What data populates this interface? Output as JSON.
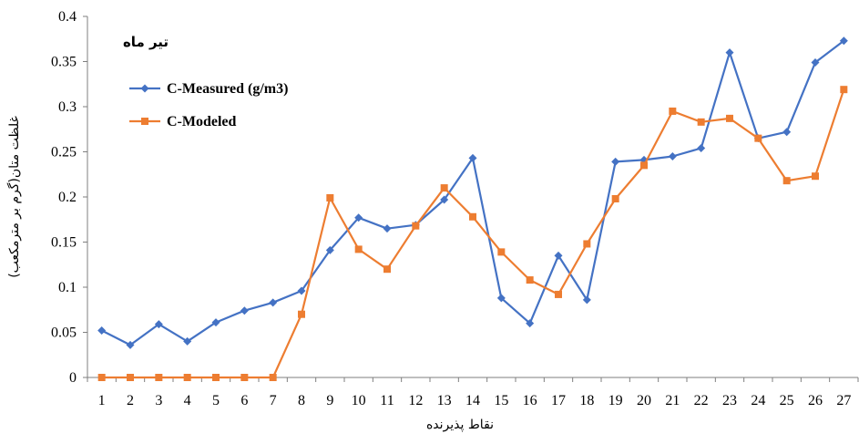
{
  "chart_data": {
    "type": "line",
    "annotation": "تیر ماه",
    "xlabel": "نقاط پذیرنده",
    "ylabel": "غلظت متان(گرم بر مترمکعب)",
    "categories": [
      "1",
      "2",
      "3",
      "4",
      "5",
      "6",
      "7",
      "8",
      "9",
      "10",
      "11",
      "12",
      "13",
      "14",
      "15",
      "16",
      "17",
      "18",
      "19",
      "20",
      "21",
      "22",
      "23",
      "24",
      "25",
      "26",
      "27"
    ],
    "ylim": [
      0,
      0.4
    ],
    "yticks": [
      0,
      0.05,
      0.1,
      0.15,
      0.2,
      0.25,
      0.3,
      0.35,
      0.4
    ],
    "ytick_labels": [
      "0",
      "0.05",
      "0.1",
      "0.15",
      "0.2",
      "0.25",
      "0.3",
      "0.35",
      "0.4"
    ],
    "grid": false,
    "legend_position": "top-left",
    "series": [
      {
        "name": "C-Measured (g/m3)",
        "color": "#4472C4",
        "marker": "diamond",
        "values": [
          0.052,
          0.036,
          0.059,
          0.04,
          0.061,
          0.074,
          0.083,
          0.096,
          0.141,
          0.177,
          0.165,
          0.169,
          0.197,
          0.243,
          0.088,
          0.06,
          0.135,
          0.086,
          0.239,
          0.241,
          0.245,
          0.254,
          0.36,
          0.265,
          0.272,
          0.349,
          0.373
        ]
      },
      {
        "name": "C-Modeled",
        "color": "#ED7D31",
        "marker": "square",
        "values": [
          0,
          0,
          0,
          0,
          0,
          0,
          0,
          0.07,
          0.199,
          0.142,
          0.12,
          0.168,
          0.21,
          0.178,
          0.139,
          0.108,
          0.092,
          0.148,
          0.198,
          0.235,
          0.295,
          0.283,
          0.287,
          0.265,
          0.218,
          0.223,
          0.319
        ]
      }
    ]
  }
}
